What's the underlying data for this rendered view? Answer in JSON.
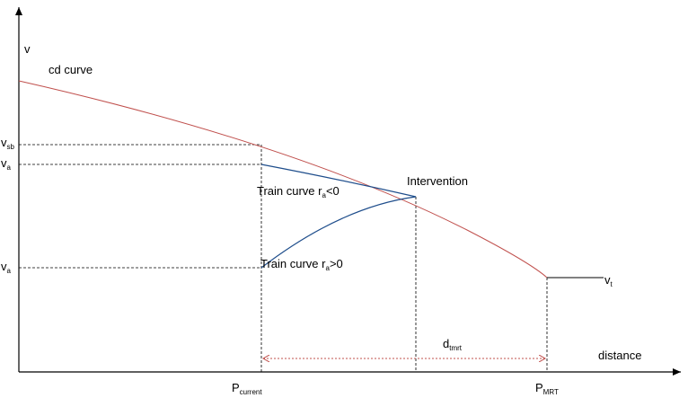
{
  "colors": {
    "axis": "#000000",
    "cd_curve": "#c0504d",
    "train_curve": "#1f4e8c",
    "dimension": "#c0504d",
    "guide": "#000000"
  },
  "labels": {
    "y_axis": "v",
    "x_axis": "distance",
    "cd_curve": "cd curve",
    "intervention": "Intervention",
    "train_curve_neg": {
      "main": "Train curve r",
      "sub": "a",
      "tail": "<0"
    },
    "train_curve_pos": {
      "main": "Train curve r",
      "sub": "a",
      "tail": ">0"
    },
    "v_sb": {
      "main": "v",
      "sub": "sb"
    },
    "v_a_upper": {
      "main": "v",
      "sub": "a"
    },
    "v_a_lower": {
      "main": "v",
      "sub": "a"
    },
    "v_t": {
      "main": "v",
      "sub": "t"
    },
    "p_current": {
      "main": "P",
      "sub": "current"
    },
    "p_mrt": {
      "main": "P",
      "sub": "MRT"
    },
    "d_tmrt": {
      "main": "d",
      "sub": "tmrt"
    }
  }
}
